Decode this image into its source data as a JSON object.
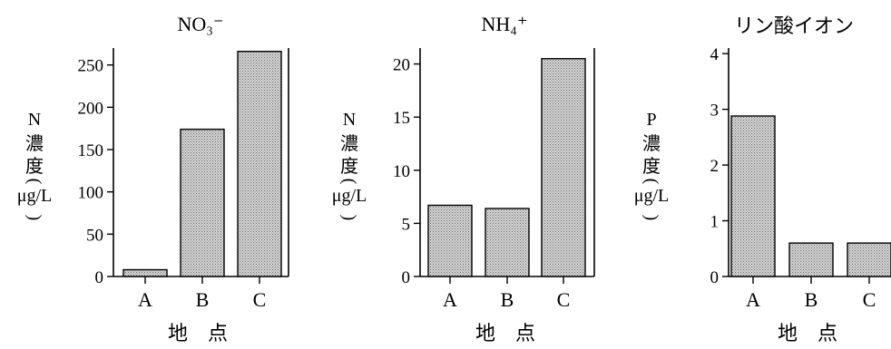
{
  "chart_data": [
    {
      "type": "bar",
      "title": "NO₃⁻",
      "ylabel": [
        "N",
        "濃",
        "度",
        "(",
        "μg/L",
        ")"
      ],
      "xlabel": "地　点",
      "categories": [
        "A",
        "B",
        "C"
      ],
      "values": [
        8,
        174,
        266
      ],
      "ylim": [
        0,
        270
      ],
      "yticks": [
        "0",
        "50",
        "100",
        "150",
        "200",
        "250"
      ],
      "ytick_values": [
        0,
        50,
        100,
        150,
        200,
        250
      ]
    },
    {
      "type": "bar",
      "title": "NH₄⁺",
      "ylabel": [
        "N",
        "濃",
        "度",
        "(",
        "μg/L",
        ")"
      ],
      "xlabel": "地　点",
      "categories": [
        "A",
        "B",
        "C"
      ],
      "values": [
        6.7,
        6.4,
        20.5
      ],
      "ylim": [
        0,
        21.5
      ],
      "yticks": [
        "0",
        "5",
        "10",
        "15",
        "20"
      ],
      "ytick_values": [
        0,
        5,
        10,
        15,
        20
      ]
    },
    {
      "type": "bar",
      "title": "リン酸イオン",
      "ylabel": [
        "P",
        "濃",
        "度",
        "(",
        "μg/L",
        ")"
      ],
      "xlabel": "地　点",
      "categories": [
        "A",
        "B",
        "C"
      ],
      "values": [
        2.88,
        0.6,
        0.6
      ],
      "ylim": [
        0,
        4.1
      ],
      "yticks": [
        "0",
        "1",
        "2",
        "3",
        "4"
      ],
      "ytick_values": [
        0,
        1,
        2,
        3,
        4
      ]
    }
  ],
  "colors": {
    "bar_fill": "#c8c8c8",
    "bar_stroke": "#000000",
    "axis": "#000000"
  }
}
